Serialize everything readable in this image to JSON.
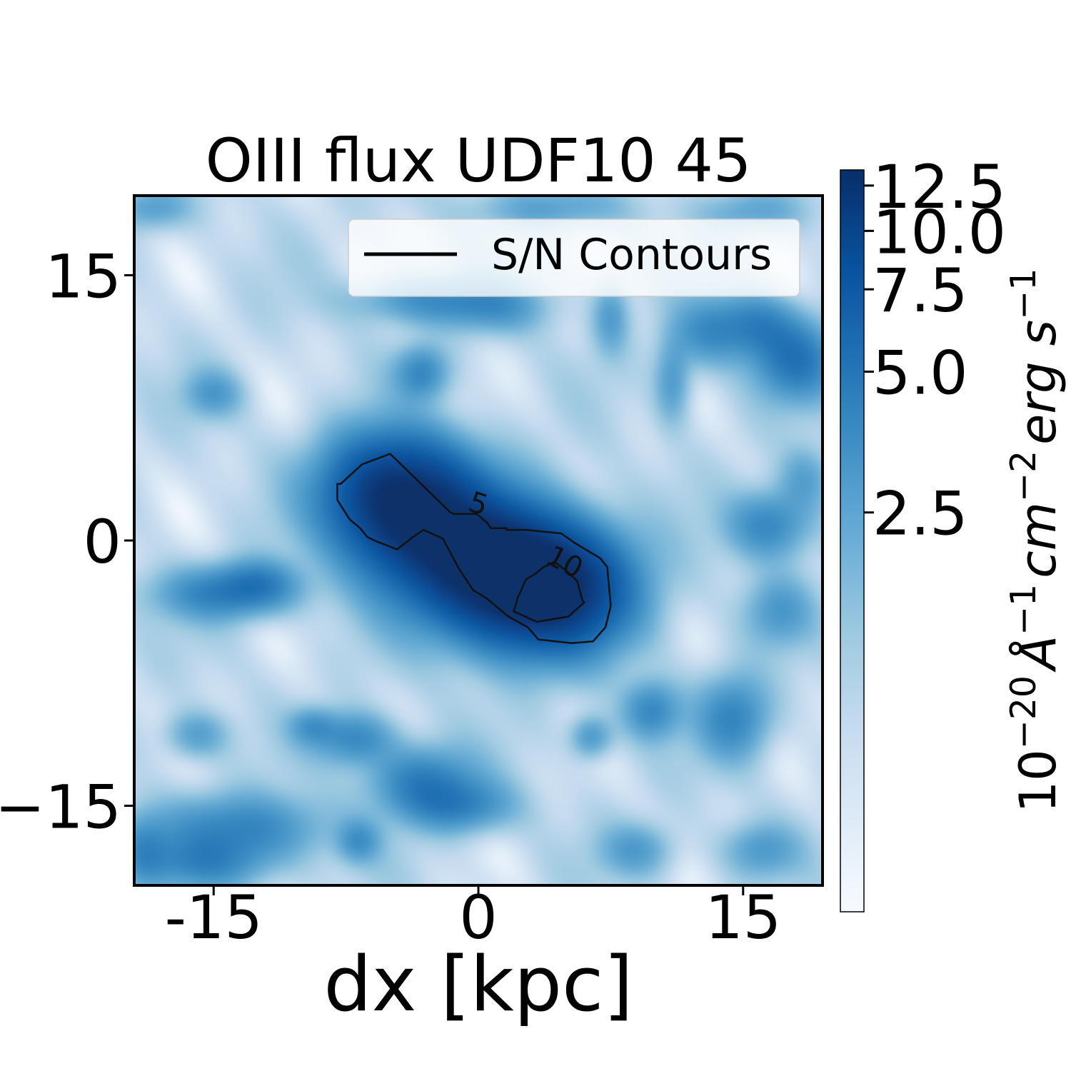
{
  "chart_data": {
    "type": "heatmap",
    "title": "OIII flux UDF10 45",
    "xlabel": "dx [kpc]",
    "ylabel": "",
    "xlim": [
      -19.5,
      19.5
    ],
    "ylim": [
      -19.5,
      19.5
    ],
    "xticks": [
      {
        "value": -15,
        "label": "-15"
      },
      {
        "value": 0,
        "label": "0"
      },
      {
        "value": 15,
        "label": "15"
      }
    ],
    "yticks": [
      {
        "value": 15,
        "label": "15"
      },
      {
        "value": 0,
        "label": "0"
      },
      {
        "value": -15,
        "label": "−15"
      }
    ],
    "colormap": "Blues",
    "colormap_stops": [
      "#f7fbff",
      "#deebf7",
      "#c6dbef",
      "#9ecae1",
      "#6baed6",
      "#4292c6",
      "#2171b5",
      "#08519c",
      "#08306b"
    ],
    "color_scale": "log",
    "color_range": [
      0.35,
      13.5
    ],
    "colorbar": {
      "label": "10⁻²⁰ Å⁻¹ cm⁻² erg s⁻¹",
      "ticks": [
        {
          "value": 2.5,
          "label": "2.5"
        },
        {
          "value": 5.0,
          "label": "5.0"
        },
        {
          "value": 7.5,
          "label": "7.5"
        },
        {
          "value": 10.0,
          "label": "10.0"
        },
        {
          "value": 12.5,
          "label": "12.5"
        }
      ]
    },
    "legend": {
      "position": "top-right",
      "entries": [
        "S/N Contours"
      ]
    },
    "contours": [
      {
        "level": 5,
        "label": "5",
        "label_at": [
          0.0,
          2.1
        ],
        "label_angle": 18,
        "points": [
          [
            -5.0,
            4.9
          ],
          [
            -6.6,
            4.3
          ],
          [
            -7.8,
            3.2
          ],
          [
            -8.0,
            3.2
          ],
          [
            -8.0,
            2.3
          ],
          [
            -7.3,
            1.2
          ],
          [
            -6.7,
            0.7
          ],
          [
            -6.3,
            0.2
          ],
          [
            -5.9,
            0.0
          ],
          [
            -4.6,
            -0.5
          ],
          [
            -3.7,
            0.2
          ],
          [
            -3.1,
            0.6
          ],
          [
            -2.0,
            0.1
          ],
          [
            -1.9,
            -0.1
          ],
          [
            -1.1,
            -1.6
          ],
          [
            -0.3,
            -2.8
          ],
          [
            0.5,
            -3.3
          ],
          [
            1.7,
            -4.3
          ],
          [
            2.8,
            -4.9
          ],
          [
            3.4,
            -5.6
          ],
          [
            5.3,
            -5.8
          ],
          [
            6.5,
            -5.7
          ],
          [
            7.2,
            -4.9
          ],
          [
            7.5,
            -3.7
          ],
          [
            7.4,
            -2.6
          ],
          [
            7.3,
            -1.5
          ],
          [
            6.9,
            -1.0
          ],
          [
            5.9,
            -0.4
          ],
          [
            5.4,
            -0.1
          ],
          [
            4.7,
            0.4
          ],
          [
            2.7,
            0.6
          ],
          [
            1.6,
            0.6
          ],
          [
            1.6,
            0.7
          ],
          [
            0.7,
            0.7
          ],
          [
            0.5,
            1.0
          ],
          [
            -0.1,
            1.5
          ],
          [
            -1.4,
            1.5
          ],
          [
            -1.6,
            1.6
          ],
          [
            -5.0,
            4.9
          ]
        ]
      },
      {
        "level": 10,
        "label": "10",
        "label_at": [
          4.9,
          -1.2
        ],
        "label_angle": 28,
        "points": [
          [
            3.2,
            -1.9
          ],
          [
            2.7,
            -2.2
          ],
          [
            2.2,
            -3.3
          ],
          [
            2.2,
            -3.4
          ],
          [
            2.0,
            -4.0
          ],
          [
            3.3,
            -4.6
          ],
          [
            5.1,
            -4.3
          ],
          [
            6.0,
            -3.5
          ],
          [
            5.9,
            -3.4
          ],
          [
            5.6,
            -2.3
          ],
          [
            5.1,
            -1.8
          ],
          [
            4.3,
            -1.2
          ],
          [
            3.7,
            -1.5
          ],
          [
            3.2,
            -1.9
          ]
        ]
      }
    ],
    "flux_sources": [
      {
        "x": -4.0,
        "y": 1.8,
        "sx": 2.7,
        "sy": 2.3,
        "amp": 10.0
      },
      {
        "x": -1.0,
        "y": -0.8,
        "sx": 3.0,
        "sy": 2.6,
        "amp": 7.5
      },
      {
        "x": 3.8,
        "y": -2.7,
        "sx": 3.0,
        "sy": 2.3,
        "amp": 14.0
      },
      {
        "x": 1.4,
        "y": -1.2,
        "sx": 2.4,
        "sy": 2.0,
        "amp": 5.0
      },
      {
        "x": -5.5,
        "y": 3.4,
        "sx": 2.5,
        "sy": 2.0,
        "amp": 4.0
      },
      {
        "x": 18.0,
        "y": 10.2,
        "sx": 1.6,
        "sy": 1.5,
        "amp": 4.0
      },
      {
        "x": 15.8,
        "y": 12.2,
        "sx": 1.5,
        "sy": 1.2,
        "amp": 3.0
      },
      {
        "x": 13.0,
        "y": 11.8,
        "sx": 1.4,
        "sy": 1.3,
        "amp": 2.5
      },
      {
        "x": 16.5,
        "y": 0.9,
        "sx": 1.6,
        "sy": 1.3,
        "amp": 3.2
      },
      {
        "x": 17.0,
        "y": -4.0,
        "sx": 1.3,
        "sy": 1.3,
        "amp": 2.0
      },
      {
        "x": -3.0,
        "y": 13.6,
        "sx": 2.8,
        "sy": 0.9,
        "amp": 2.5
      },
      {
        "x": 1.0,
        "y": 13.2,
        "sx": 2.0,
        "sy": 1.0,
        "amp": 2.0
      },
      {
        "x": -3.2,
        "y": 9.5,
        "sx": 1.0,
        "sy": 1.0,
        "amp": 3.0
      },
      {
        "x": 11.0,
        "y": 9.0,
        "sx": 0.7,
        "sy": 1.6,
        "amp": 2.2
      },
      {
        "x": 7.5,
        "y": 12.7,
        "sx": 0.7,
        "sy": 1.4,
        "amp": 2.0
      },
      {
        "x": -15.0,
        "y": 8.3,
        "sx": 1.1,
        "sy": 0.9,
        "amp": 2.0
      },
      {
        "x": -14.5,
        "y": -3.0,
        "sx": 2.5,
        "sy": 1.0,
        "amp": 3.2
      },
      {
        "x": -12.5,
        "y": -2.4,
        "sx": 1.5,
        "sy": 0.9,
        "amp": 2.6
      },
      {
        "x": -7.0,
        "y": -11.2,
        "sx": 1.5,
        "sy": 1.0,
        "amp": 3.0
      },
      {
        "x": -3.2,
        "y": -13.6,
        "sx": 2.0,
        "sy": 1.3,
        "amp": 3.5
      },
      {
        "x": -1.0,
        "y": -15.0,
        "sx": 2.0,
        "sy": 1.0,
        "amp": 3.0
      },
      {
        "x": -13.5,
        "y": -16.3,
        "sx": 3.2,
        "sy": 1.3,
        "amp": 3.2
      },
      {
        "x": -15.5,
        "y": -18.3,
        "sx": 2.5,
        "sy": 1.0,
        "amp": 2.5
      },
      {
        "x": 9.8,
        "y": -9.6,
        "sx": 1.1,
        "sy": 1.1,
        "amp": 3.0
      },
      {
        "x": 14.5,
        "y": -10.0,
        "sx": 1.4,
        "sy": 1.6,
        "amp": 3.2
      },
      {
        "x": 6.4,
        "y": -11.1,
        "sx": 0.8,
        "sy": 0.8,
        "amp": 2.4
      },
      {
        "x": 16.0,
        "y": -17.5,
        "sx": 1.4,
        "sy": 1.0,
        "amp": 2.0
      },
      {
        "x": -19.0,
        "y": -17.5,
        "sx": 1.0,
        "sy": 1.3,
        "amp": 2.3
      },
      {
        "x": -16.0,
        "y": -11.0,
        "sx": 1.2,
        "sy": 0.9,
        "amp": 2.0
      },
      {
        "x": -6.8,
        "y": -17.0,
        "sx": 0.8,
        "sy": 0.8,
        "amp": 2.2
      },
      {
        "x": -9.4,
        "y": -10.5,
        "sx": 0.9,
        "sy": 0.7,
        "amp": 2.0
      },
      {
        "x": 9.0,
        "y": -17.5,
        "sx": 1.4,
        "sy": 1.0,
        "amp": 2.0
      },
      {
        "x": 18.5,
        "y": 3.5,
        "sx": 1.0,
        "sy": 1.2,
        "amp": 1.8
      },
      {
        "x": -18.5,
        "y": 18.8,
        "sx": 1.4,
        "sy": 0.8,
        "amp": 1.8
      },
      {
        "x": 4.0,
        "y": 18.8,
        "sx": 3.0,
        "sy": 0.8,
        "amp": 1.7
      },
      {
        "x": 15.5,
        "y": 18.6,
        "sx": 2.0,
        "sy": 0.8,
        "amp": 1.6
      }
    ]
  }
}
